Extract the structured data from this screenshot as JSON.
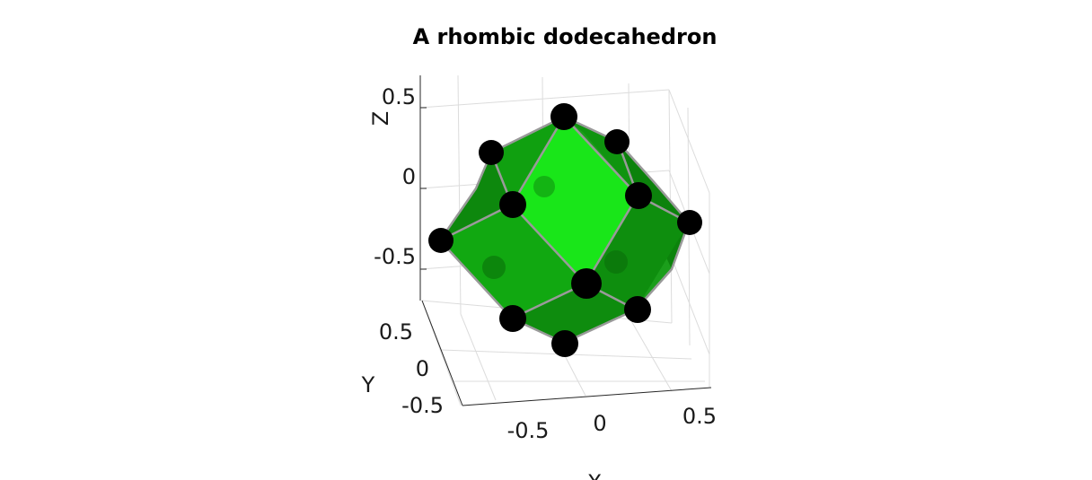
{
  "figure": {
    "title": "A rhombic dodecahedron",
    "x_axis": {
      "label": "X",
      "ticks": [
        "-0.5",
        "0",
        "0.5"
      ]
    },
    "y_axis": {
      "label": "Y",
      "ticks": [
        "0.5",
        "0",
        "-0.5"
      ]
    },
    "z_axis": {
      "label": "Z",
      "ticks": [
        "0.5",
        "0",
        "-0.5"
      ]
    },
    "colors": {
      "face_front": "#19e619",
      "face_mid": "#12b812",
      "face_dark": "#0e8f0e",
      "edge": "#9a9a9a",
      "vertex": "#000000"
    },
    "grid": true,
    "vertex_count": 14,
    "face_count": 12
  }
}
